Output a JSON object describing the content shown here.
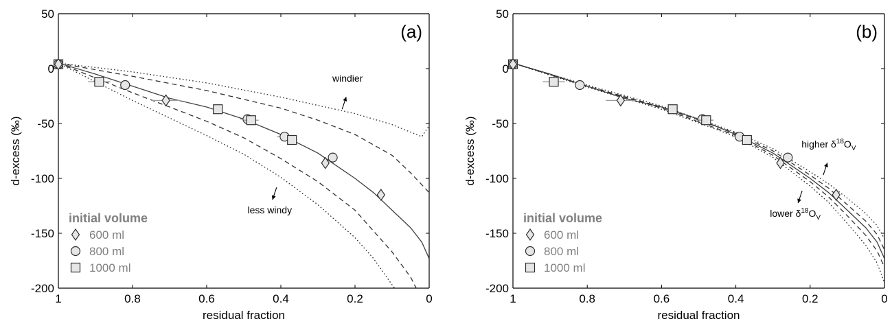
{
  "chart_data": [
    {
      "type": "line",
      "panel_label": "(a)",
      "xlabel": "residual fraction",
      "ylabel": "d-excess (‰)",
      "xlim": [
        1,
        0
      ],
      "ylim": [
        -200,
        50
      ],
      "x_ticks": [
        "1",
        "0.8",
        "0.6",
        "0.4",
        "0.2",
        "0"
      ],
      "y_ticks": [
        "50",
        "0",
        "-50",
        "-100",
        "-150",
        "-200"
      ],
      "grid": false,
      "legend": {
        "title": "initial volume",
        "placement": "bottom-left",
        "entries": [
          {
            "marker": "diamond",
            "label": "600 ml"
          },
          {
            "marker": "circle",
            "label": "800 ml"
          },
          {
            "marker": "square",
            "label": "1000 ml"
          }
        ]
      },
      "annotations": [
        {
          "text": "windier",
          "x": 0.22,
          "y": -12,
          "arrow": "up"
        },
        {
          "text": "less windy",
          "x": 0.43,
          "y": -132,
          "arrow": "down"
        }
      ],
      "series": [
        {
          "style": "solid",
          "x": [
            1,
            0.9,
            0.8,
            0.7,
            0.6,
            0.5,
            0.4,
            0.3,
            0.2,
            0.15,
            0.1,
            0.05,
            0.02,
            0
          ],
          "y": [
            5,
            -5,
            -16,
            -27,
            -35,
            -46,
            -60,
            -77,
            -100,
            -113,
            -129,
            -145,
            -158,
            -173
          ]
        },
        {
          "style": "dashed",
          "x": [
            1,
            0.8,
            0.6,
            0.4,
            0.3,
            0.2,
            0.1,
            0.05,
            0
          ],
          "y": [
            5,
            -7,
            -20,
            -36,
            -47,
            -60,
            -79,
            -95,
            -113
          ]
        },
        {
          "style": "dashed",
          "x": [
            1,
            0.8,
            0.6,
            0.5,
            0.4,
            0.3,
            0.2,
            0.1,
            0.05,
            0.02
          ],
          "y": [
            5,
            -22,
            -48,
            -63,
            -82,
            -103,
            -129,
            -167,
            -190,
            -210
          ]
        },
        {
          "style": "dotted",
          "x": [
            1,
            0.8,
            0.6,
            0.4,
            0.2,
            0.1,
            0.02,
            0
          ],
          "y": [
            5,
            -3,
            -13,
            -26,
            -41,
            -51,
            -62,
            -52
          ]
        },
        {
          "style": "dotted",
          "x": [
            1,
            0.8,
            0.6,
            0.5,
            0.4,
            0.3,
            0.2,
            0.15,
            0.1,
            0.07
          ],
          "y": [
            5,
            -29,
            -61,
            -78,
            -99,
            -124,
            -154,
            -173,
            -197,
            -210
          ]
        }
      ],
      "points": [
        {
          "marker": "square",
          "x": 1,
          "y": 4
        },
        {
          "marker": "circle",
          "x": 1,
          "y": 4
        },
        {
          "marker": "diamond",
          "x": 1,
          "y": 4
        },
        {
          "marker": "square",
          "x": 0.89,
          "y": -12,
          "xerr": 0.03
        },
        {
          "marker": "circle",
          "x": 0.82,
          "y": -15
        },
        {
          "marker": "diamond",
          "x": 0.71,
          "y": -29,
          "xerr": 0.04
        },
        {
          "marker": "square",
          "x": 0.57,
          "y": -37
        },
        {
          "marker": "circle",
          "x": 0.49,
          "y": -46,
          "xerr": 0.02
        },
        {
          "marker": "square",
          "x": 0.48,
          "y": -47,
          "xerr": 0.02
        },
        {
          "marker": "circle",
          "x": 0.39,
          "y": -62,
          "xerr": 0.02
        },
        {
          "marker": "square",
          "x": 0.37,
          "y": -65
        },
        {
          "marker": "diamond",
          "x": 0.28,
          "y": -86,
          "xerr": 0.01
        },
        {
          "marker": "circle",
          "x": 0.26,
          "y": -81
        },
        {
          "marker": "diamond",
          "x": 0.13,
          "y": -115
        }
      ]
    },
    {
      "type": "line",
      "panel_label": "(b)",
      "xlabel": "residual fraction",
      "ylabel": "d-excess (‰)",
      "xlim": [
        1,
        0
      ],
      "ylim": [
        -200,
        50
      ],
      "x_ticks": [
        "1",
        "0.8",
        "0.6",
        "0.4",
        "0.2",
        "0"
      ],
      "y_ticks": [
        "50",
        "0",
        "-50",
        "-100",
        "-150",
        "-200"
      ],
      "grid": false,
      "legend": {
        "title": "initial volume",
        "placement": "bottom-left",
        "entries": [
          {
            "marker": "diamond",
            "label": "600 ml"
          },
          {
            "marker": "circle",
            "label": "800 ml"
          },
          {
            "marker": "square",
            "label": "1000 ml"
          }
        ]
      },
      "annotations": [
        {
          "text_parts": [
            "higher δ",
            "18",
            "O",
            "V"
          ],
          "x": 0.15,
          "y": -72,
          "arrow": "up"
        },
        {
          "text_parts": [
            "lower δ",
            "18",
            "O",
            "V"
          ],
          "x": 0.24,
          "y": -135,
          "arrow": "down"
        }
      ],
      "series": [
        {
          "style": "solid",
          "x": [
            1,
            0.9,
            0.8,
            0.7,
            0.6,
            0.5,
            0.4,
            0.3,
            0.2,
            0.15,
            0.1,
            0.05,
            0.02,
            0
          ],
          "y": [
            5,
            -5,
            -16,
            -27,
            -35,
            -46,
            -60,
            -77,
            -100,
            -113,
            -129,
            -145,
            -158,
            -173
          ]
        },
        {
          "style": "dashed",
          "x": [
            1,
            0.8,
            0.6,
            0.4,
            0.3,
            0.2,
            0.15,
            0.1,
            0.05,
            0.02,
            0
          ],
          "y": [
            5,
            -16,
            -35,
            -59,
            -75,
            -97,
            -109,
            -124,
            -139,
            -151,
            -165
          ]
        },
        {
          "style": "dashed",
          "x": [
            1,
            0.8,
            0.6,
            0.4,
            0.3,
            0.2,
            0.15,
            0.1,
            0.05,
            0.02,
            0
          ],
          "y": [
            5,
            -16,
            -36,
            -61,
            -79,
            -103,
            -117,
            -134,
            -152,
            -166,
            -181
          ]
        },
        {
          "style": "dotted",
          "x": [
            1,
            0.8,
            0.6,
            0.4,
            0.3,
            0.2,
            0.15,
            0.1,
            0.05,
            0.02,
            0
          ],
          "y": [
            5,
            -15,
            -34,
            -58,
            -73,
            -94,
            -105,
            -118,
            -132,
            -143,
            -155
          ]
        },
        {
          "style": "dotted",
          "x": [
            1,
            0.8,
            0.6,
            0.4,
            0.3,
            0.2,
            0.15,
            0.1,
            0.05,
            0.02,
            0
          ],
          "y": [
            5,
            -17,
            -37,
            -62,
            -81,
            -107,
            -122,
            -141,
            -161,
            -177,
            -195
          ]
        }
      ],
      "points": [
        {
          "marker": "square",
          "x": 1,
          "y": 4
        },
        {
          "marker": "circle",
          "x": 1,
          "y": 4
        },
        {
          "marker": "diamond",
          "x": 1,
          "y": 4
        },
        {
          "marker": "square",
          "x": 0.89,
          "y": -12,
          "xerr": 0.03
        },
        {
          "marker": "circle",
          "x": 0.82,
          "y": -15
        },
        {
          "marker": "diamond",
          "x": 0.71,
          "y": -29,
          "xerr": 0.04
        },
        {
          "marker": "square",
          "x": 0.57,
          "y": -37
        },
        {
          "marker": "circle",
          "x": 0.49,
          "y": -46,
          "xerr": 0.02
        },
        {
          "marker": "square",
          "x": 0.48,
          "y": -47,
          "xerr": 0.02
        },
        {
          "marker": "circle",
          "x": 0.39,
          "y": -62,
          "xerr": 0.02
        },
        {
          "marker": "square",
          "x": 0.37,
          "y": -65
        },
        {
          "marker": "diamond",
          "x": 0.28,
          "y": -86,
          "xerr": 0.01
        },
        {
          "marker": "circle",
          "x": 0.26,
          "y": -81
        },
        {
          "marker": "diamond",
          "x": 0.13,
          "y": -115
        }
      ]
    }
  ]
}
